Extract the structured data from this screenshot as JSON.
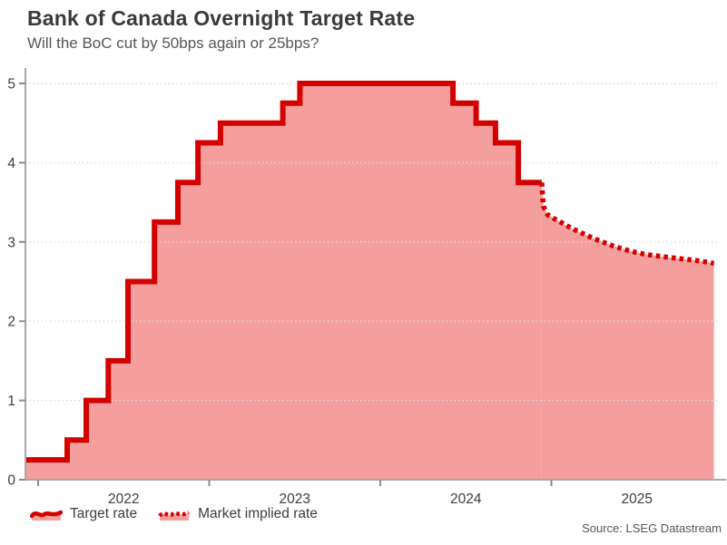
{
  "header": {
    "title": "Bank of Canada Overnight Target Rate",
    "subtitle": "Will the BoC cut by 50bps again or 25bps?"
  },
  "legend": {
    "items": [
      {
        "label": "Target rate",
        "style": "solid"
      },
      {
        "label": "Market implied rate",
        "style": "dotted"
      }
    ]
  },
  "footer": {
    "source": "Source: LSEG Datastream"
  },
  "colors": {
    "line": "#d40000",
    "fill": "#f59e9e",
    "grid": "#dcdcdc",
    "axis": "#a8a8a8",
    "tick": "#8c8c8c",
    "title_text": "#3a3a3a",
    "subtitle_text": "#575757",
    "label_text": "#3d3d3d"
  },
  "chart_data": {
    "type": "area",
    "title": "Bank of Canada Overnight Target Rate",
    "subtitle": "Will the BoC cut by 50bps again or 25bps?",
    "xlabel": "",
    "ylabel": "",
    "xlim": [
      2021.926,
      2025.95
    ],
    "ylim": [
      0,
      5.2
    ],
    "y_ticks": [
      0,
      1,
      2,
      3,
      4,
      5
    ],
    "x_ticks": [
      2022,
      2023,
      2024,
      2025
    ],
    "grid": "horizontal-dotted",
    "legend_position": "bottom-left",
    "series": [
      {
        "name": "Target rate",
        "mode": "step",
        "line_style": "solid",
        "points": [
          [
            2021.926,
            0.25
          ],
          [
            2022.17,
            0.5
          ],
          [
            2022.281,
            1.0
          ],
          [
            2022.41,
            1.5
          ],
          [
            2022.525,
            2.5
          ],
          [
            2022.68,
            3.25
          ],
          [
            2022.817,
            3.75
          ],
          [
            2022.934,
            4.25
          ],
          [
            2023.066,
            4.5
          ],
          [
            2023.43,
            4.75
          ],
          [
            2023.53,
            5.0
          ],
          [
            2024.425,
            4.75
          ],
          [
            2024.56,
            4.5
          ],
          [
            2024.673,
            4.25
          ],
          [
            2024.807,
            3.75
          ]
        ],
        "end_x": 2024.944
      },
      {
        "name": "Market implied rate",
        "mode": "line",
        "line_style": "dotted",
        "points": [
          [
            2024.944,
            3.75
          ],
          [
            2024.953,
            3.45
          ],
          [
            2024.98,
            3.34
          ],
          [
            2025.02,
            3.29
          ],
          [
            2025.07,
            3.23
          ],
          [
            2025.12,
            3.17
          ],
          [
            2025.18,
            3.11
          ],
          [
            2025.24,
            3.05
          ],
          [
            2025.3,
            3.0
          ],
          [
            2025.36,
            2.95
          ],
          [
            2025.42,
            2.91
          ],
          [
            2025.49,
            2.87
          ],
          [
            2025.56,
            2.84
          ],
          [
            2025.63,
            2.82
          ],
          [
            2025.71,
            2.8
          ],
          [
            2025.79,
            2.78
          ],
          [
            2025.87,
            2.76
          ],
          [
            2025.95,
            2.73
          ]
        ]
      }
    ]
  }
}
